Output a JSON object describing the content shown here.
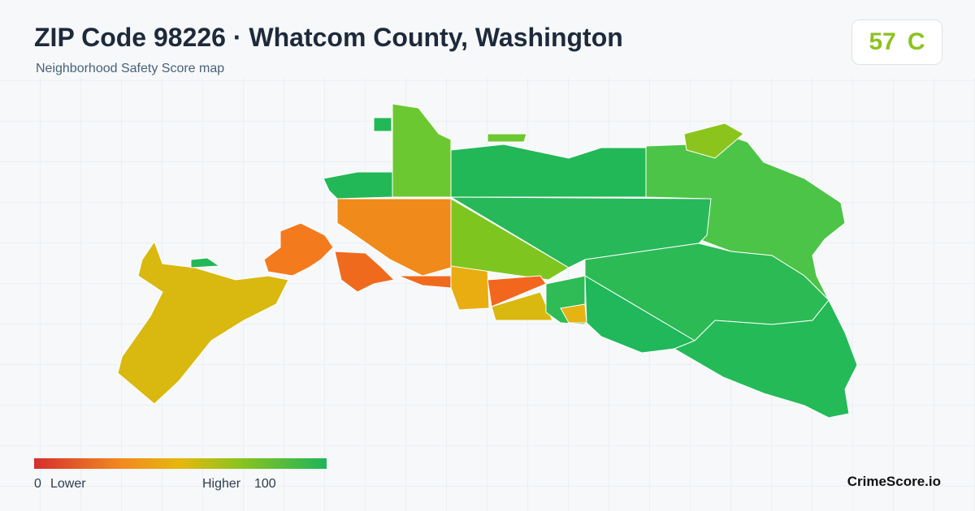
{
  "header": {
    "title": "ZIP Code 98226 · Whatcom County, Washington",
    "subtitle": "Neighborhood Safety Score map"
  },
  "score": {
    "value": 57,
    "grade": "C"
  },
  "legend": {
    "min": 0,
    "min_label": "Lower",
    "max_label": "Higher",
    "max": 100
  },
  "brand": "CrimeScore.io"
}
